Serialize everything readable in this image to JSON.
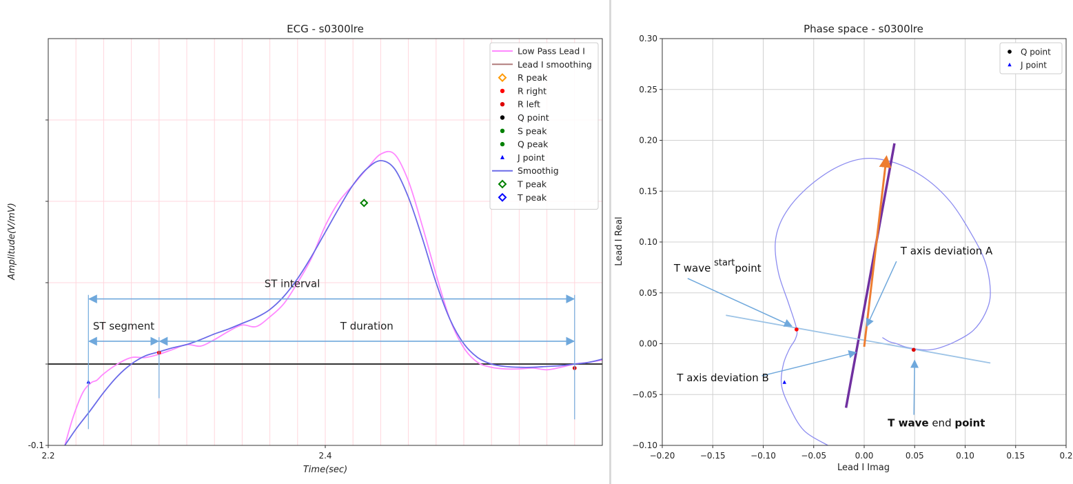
{
  "chart_data": [
    {
      "type": "line",
      "title": "ECG - s0300lre",
      "xlabel": "Time(sec)",
      "ylabel": "Amplitude(V/mV)",
      "xlim": [
        2.2,
        2.6
      ],
      "ylim": [
        -0.1,
        0.4
      ],
      "x_ticks": [
        {
          "value": 2.2,
          "label": "2.2"
        },
        {
          "value": 2.4,
          "label": "2.4"
        }
      ],
      "y_ticks": [
        {
          "value": -0.1,
          "label": "-0.1"
        }
      ],
      "grid": true,
      "legend_position": "top-right",
      "legend": [
        {
          "label": "Low Pass Lead I",
          "marker": "line",
          "color": "#ff88ff"
        },
        {
          "label": "Lead I smoothing",
          "marker": "line",
          "color": "#b07a7a"
        },
        {
          "label": "R peak",
          "marker": "diamond-open",
          "color": "#ff9900"
        },
        {
          "label": "R right",
          "marker": "dot",
          "color": "#ff0000"
        },
        {
          "label": "R left",
          "marker": "dot",
          "color": "#dd0000"
        },
        {
          "label": "Q point",
          "marker": "dot",
          "color": "#000000"
        },
        {
          "label": "S peak",
          "marker": "dot",
          "color": "#008000"
        },
        {
          "label": "Q peak",
          "marker": "dot",
          "color": "#008000"
        },
        {
          "label": "J point",
          "marker": "triangle",
          "color": "#0000ff"
        },
        {
          "label": "Smoothig",
          "marker": "line",
          "color": "#6a6ae8"
        },
        {
          "label": "T peak",
          "marker": "diamond-open",
          "color": "#008000"
        },
        {
          "label": "T peak",
          "marker": "diamond-open",
          "color": "#0000ff"
        }
      ],
      "series": [
        {
          "name": "Low Pass Lead I",
          "color": "#ff88ff",
          "x": [
            2.212,
            2.218,
            2.225,
            2.231,
            2.235,
            2.24,
            2.25,
            2.26,
            2.27,
            2.28,
            2.29,
            2.3,
            2.31,
            2.32,
            2.33,
            2.34,
            2.35,
            2.36,
            2.37,
            2.38,
            2.39,
            2.4,
            2.41,
            2.42,
            2.43,
            2.44,
            2.45,
            2.46,
            2.47,
            2.48,
            2.49,
            2.5,
            2.51,
            2.52,
            2.53,
            2.54,
            2.55,
            2.56,
            2.57,
            2.58,
            2.59,
            2.6
          ],
          "y": [
            -0.1,
            -0.065,
            -0.035,
            -0.023,
            -0.02,
            -0.012,
            0.0,
            0.008,
            0.008,
            0.012,
            0.018,
            0.024,
            0.022,
            0.03,
            0.04,
            0.048,
            0.046,
            0.058,
            0.074,
            0.1,
            0.13,
            0.17,
            0.2,
            0.22,
            0.24,
            0.258,
            0.258,
            0.225,
            0.17,
            0.11,
            0.055,
            0.02,
            0.002,
            -0.004,
            -0.006,
            -0.006,
            -0.005,
            -0.007,
            -0.004,
            0.0,
            0.002,
            0.005
          ]
        },
        {
          "name": "Smoothig",
          "color": "#6a6ae8",
          "x": [
            2.212,
            2.22,
            2.23,
            2.24,
            2.25,
            2.26,
            2.27,
            2.28,
            2.29,
            2.3,
            2.31,
            2.32,
            2.33,
            2.34,
            2.35,
            2.36,
            2.37,
            2.38,
            2.39,
            2.4,
            2.41,
            2.42,
            2.43,
            2.44,
            2.45,
            2.46,
            2.47,
            2.48,
            2.49,
            2.5,
            2.51,
            2.52,
            2.53,
            2.54,
            2.55,
            2.56,
            2.57,
            2.58,
            2.59,
            2.6
          ],
          "y": [
            -0.1,
            -0.08,
            -0.058,
            -0.035,
            -0.015,
            0.0,
            0.01,
            0.015,
            0.02,
            0.024,
            0.03,
            0.037,
            0.043,
            0.05,
            0.057,
            0.067,
            0.083,
            0.105,
            0.132,
            0.162,
            0.192,
            0.22,
            0.24,
            0.25,
            0.24,
            0.205,
            0.155,
            0.1,
            0.055,
            0.025,
            0.008,
            0.0,
            -0.003,
            -0.004,
            -0.004,
            -0.003,
            -0.002,
            0.0,
            0.002,
            0.006
          ]
        }
      ],
      "points": [
        {
          "label": "J point",
          "x": 2.229,
          "y": -0.022,
          "marker": "triangle",
          "color": "#0000ff"
        },
        {
          "label": "R right",
          "x": 2.28,
          "y": 0.014,
          "marker": "dot",
          "color": "#ff0000"
        },
        {
          "label": "R right",
          "x": 2.58,
          "y": -0.005,
          "marker": "dot",
          "color": "#dd0000"
        },
        {
          "label": "T peak",
          "x": 2.428,
          "y": 0.198,
          "marker": "diamond-open",
          "color": "#008000"
        }
      ],
      "hlines": [
        {
          "y": 0.0,
          "color": "#333333"
        }
      ],
      "annotations": [
        {
          "text": "ST interval",
          "x_from": 2.229,
          "x_to": 2.58,
          "y": 0.08
        },
        {
          "text": "ST segment",
          "x_from": 2.229,
          "x_to": 2.28,
          "y": 0.028
        },
        {
          "text": "T duration",
          "x_from": 2.28,
          "x_to": 2.58,
          "y": 0.028
        }
      ]
    },
    {
      "type": "line",
      "title": "Phase space - s0300lre",
      "xlabel": "Lead I Imag",
      "ylabel": "Lead I Real",
      "xlim": [
        -0.2,
        0.2
      ],
      "ylim": [
        -0.1,
        0.3
      ],
      "x_ticks": [
        {
          "value": -0.2,
          "label": "−0.20"
        },
        {
          "value": -0.15,
          "label": "−0.15"
        },
        {
          "value": -0.1,
          "label": "−0.10"
        },
        {
          "value": -0.05,
          "label": "−0.05"
        },
        {
          "value": 0.0,
          "label": "0.00"
        },
        {
          "value": 0.05,
          "label": "0.05"
        },
        {
          "value": 0.1,
          "label": "0.10"
        },
        {
          "value": 0.15,
          "label": "0.15"
        },
        {
          "value": 0.2,
          "label": "0.2"
        }
      ],
      "y_ticks": [
        {
          "value": -0.1,
          "label": "−0.10"
        },
        {
          "value": -0.05,
          "label": "−0.05"
        },
        {
          "value": 0.0,
          "label": "0.00"
        },
        {
          "value": 0.05,
          "label": "0.05"
        },
        {
          "value": 0.1,
          "label": "0.10"
        },
        {
          "value": 0.15,
          "label": "0.15"
        },
        {
          "value": 0.2,
          "label": "0.20"
        },
        {
          "value": 0.25,
          "label": "0.25"
        },
        {
          "value": 0.3,
          "label": "0.30"
        }
      ],
      "grid": true,
      "legend_position": "top-right",
      "legend": [
        {
          "label": "Q point",
          "marker": "dot",
          "color": "#000000"
        },
        {
          "label": "J point",
          "marker": "triangle",
          "color": "#0000ff"
        }
      ],
      "series": [
        {
          "color": "#8c8cf0",
          "x": [
            -0.036,
            -0.06,
            -0.075,
            -0.082,
            -0.08,
            -0.074,
            -0.068,
            -0.067,
            -0.075,
            -0.085,
            -0.088,
            -0.08,
            -0.06,
            -0.03,
            0.0,
            0.03,
            0.06,
            0.085,
            0.105,
            0.12,
            0.125,
            0.12,
            0.108,
            0.09,
            0.075,
            0.065,
            0.058,
            0.05,
            0.04,
            0.032,
            0.025,
            0.018
          ],
          "y": [
            -0.1,
            -0.085,
            -0.06,
            -0.04,
            -0.02,
            -0.005,
            0.005,
            0.015,
            0.04,
            0.07,
            0.1,
            0.125,
            0.15,
            0.172,
            0.182,
            0.178,
            0.163,
            0.14,
            0.11,
            0.08,
            0.05,
            0.03,
            0.013,
            0.002,
            -0.004,
            -0.006,
            -0.006,
            -0.005,
            -0.003,
            0.0,
            0.002,
            0.006
          ]
        },
        {
          "name": "T axis deviation",
          "color": "#7030a0",
          "x": [
            -0.018,
            0.03
          ],
          "y": [
            -0.063,
            0.197
          ]
        },
        {
          "color": "#9cc3e6",
          "x": [
            -0.137,
            0.125
          ],
          "y": [
            0.028,
            -0.019
          ]
        }
      ],
      "arrows": [
        {
          "color": "#ed7d31",
          "x_from": 0.0,
          "y_from": -0.003,
          "x_to": 0.022,
          "y_to": 0.183
        }
      ],
      "points": [
        {
          "label": "J point",
          "x": -0.079,
          "y": -0.038,
          "marker": "triangle",
          "color": "#0000ff"
        },
        {
          "x": -0.067,
          "y": 0.014,
          "marker": "dot",
          "color": "#ff0000"
        },
        {
          "x": 0.049,
          "y": -0.006,
          "marker": "dot",
          "color": "#dd0000"
        }
      ],
      "annotations": [
        {
          "text": "T wave start point",
          "segments": [
            {
              "text": "T wave ",
              "style": "normal"
            },
            {
              "text": "start",
              "style": "superscript"
            },
            {
              "text": "point",
              "style": "normal"
            }
          ],
          "x": -0.067,
          "y": 0.014
        },
        {
          "text": "T axis deviation A",
          "x": 0.006,
          "y": 0.024
        },
        {
          "text": "T axis deviation B",
          "x": -0.008,
          "y": -0.012
        },
        {
          "text": "T wave end point",
          "segments": [
            {
              "text": "T wave",
              "style": "bold"
            },
            {
              "text": " end ",
              "style": "normal"
            },
            {
              "text": "point",
              "style": "bold"
            }
          ],
          "x": 0.052,
          "y": -0.013
        }
      ]
    }
  ]
}
